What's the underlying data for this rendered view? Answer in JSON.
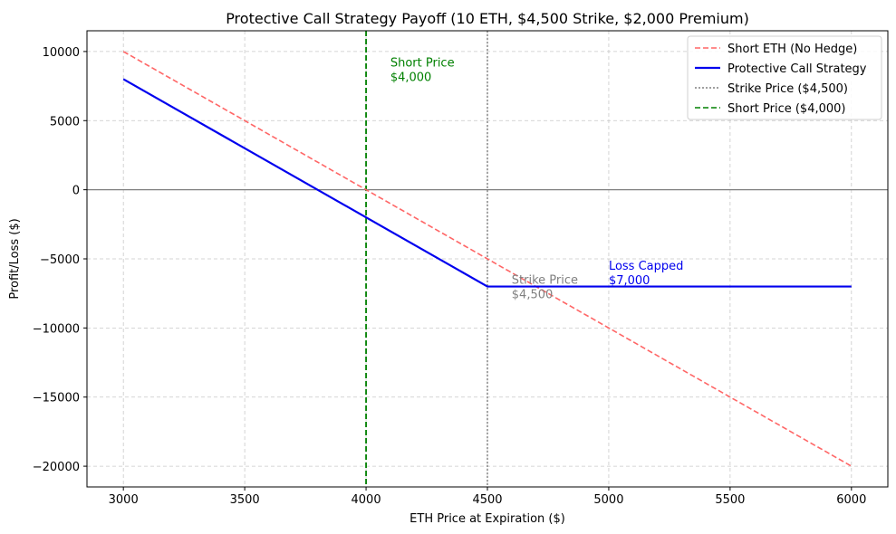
{
  "chart_data": {
    "type": "line",
    "title": "Protective Call Strategy Payoff (10 ETH, $4,500 Strike, $2,000 Premium)",
    "xlabel": "ETH Price at Expiration ($)",
    "ylabel": "Profit/Loss ($)",
    "xlim": [
      2850,
      6150
    ],
    "ylim": [
      -21500,
      11500
    ],
    "xticks": [
      3000,
      3500,
      4000,
      4500,
      5000,
      5500,
      6000
    ],
    "yticks": [
      10000,
      5000,
      0,
      -5000,
      -10000,
      -15000,
      -20000
    ],
    "ytick_labels": [
      "10000",
      "5000",
      "0",
      "−5000",
      "−10000",
      "−15000",
      "−20000"
    ],
    "grid": true,
    "legend_position": "top-right",
    "series": [
      {
        "name": "Short ETH (No Hedge)",
        "color": "#ff6666",
        "style": "dashed",
        "x": [
          3000,
          6000
        ],
        "y": [
          10000,
          -20000
        ]
      },
      {
        "name": "Protective Call Strategy",
        "color": "#0000ee",
        "style": "solid",
        "x": [
          3000,
          4500,
          6000
        ],
        "y": [
          8000,
          -7000,
          -7000
        ]
      }
    ],
    "vlines": [
      {
        "name": "Strike Price ($4,500)",
        "x": 4500,
        "color": "#808080",
        "style": "dotted"
      },
      {
        "name": "Short Price ($4,000)",
        "x": 4000,
        "color": "#008000",
        "style": "dashed"
      }
    ],
    "hline": {
      "y": 0,
      "color": "#808080"
    },
    "annotations": [
      {
        "lines": [
          "Short Price",
          "$4,000"
        ],
        "x": 4100,
        "y": 8900,
        "color": "#008000"
      },
      {
        "lines": [
          "Strike Price",
          "$4,500"
        ],
        "x": 4600,
        "y": -6800,
        "color": "#808080"
      },
      {
        "lines": [
          "Loss Capped",
          "$7,000"
        ],
        "x": 5000,
        "y": -5800,
        "color": "#0000ee"
      }
    ]
  }
}
